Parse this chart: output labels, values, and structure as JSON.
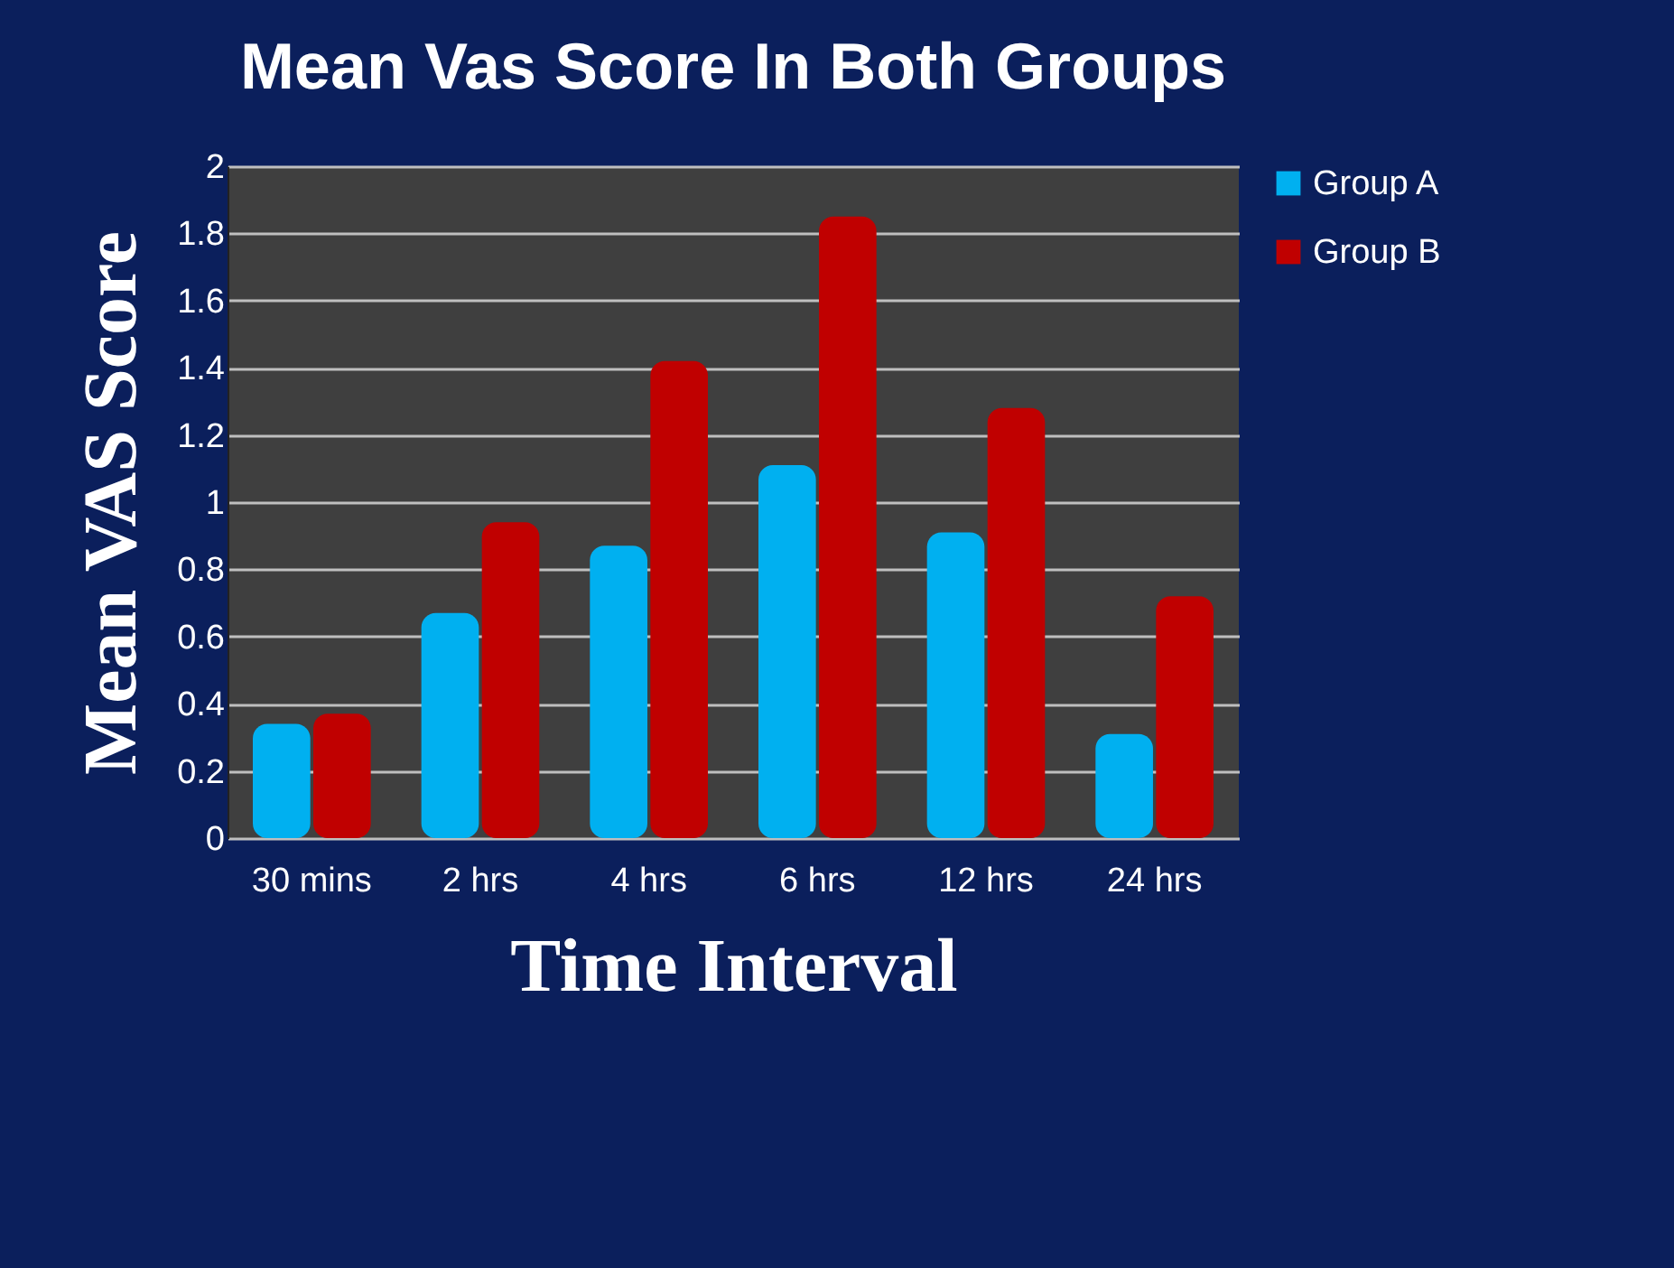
{
  "chart_data": {
    "type": "bar",
    "title": "Mean Vas Score In Both Groups",
    "xlabel": "Time Interval",
    "ylabel": "Mean VAS Score",
    "categories": [
      "30 mins",
      "2 hrs",
      "4 hrs",
      "6 hrs",
      "12 hrs",
      "24 hrs"
    ],
    "series": [
      {
        "name": "Group A",
        "color": "#00b0f0",
        "values": [
          0.34,
          0.67,
          0.87,
          1.11,
          0.91,
          0.31
        ]
      },
      {
        "name": "Group B",
        "color": "#c00000",
        "values": [
          0.37,
          0.94,
          1.42,
          1.85,
          1.28,
          0.72
        ]
      }
    ],
    "ylim": [
      0,
      2
    ],
    "yticks": [
      0,
      0.2,
      0.4,
      0.6,
      0.8,
      1,
      1.2,
      1.4,
      1.6,
      1.8,
      2
    ],
    "grid": "y",
    "legend": "right"
  }
}
